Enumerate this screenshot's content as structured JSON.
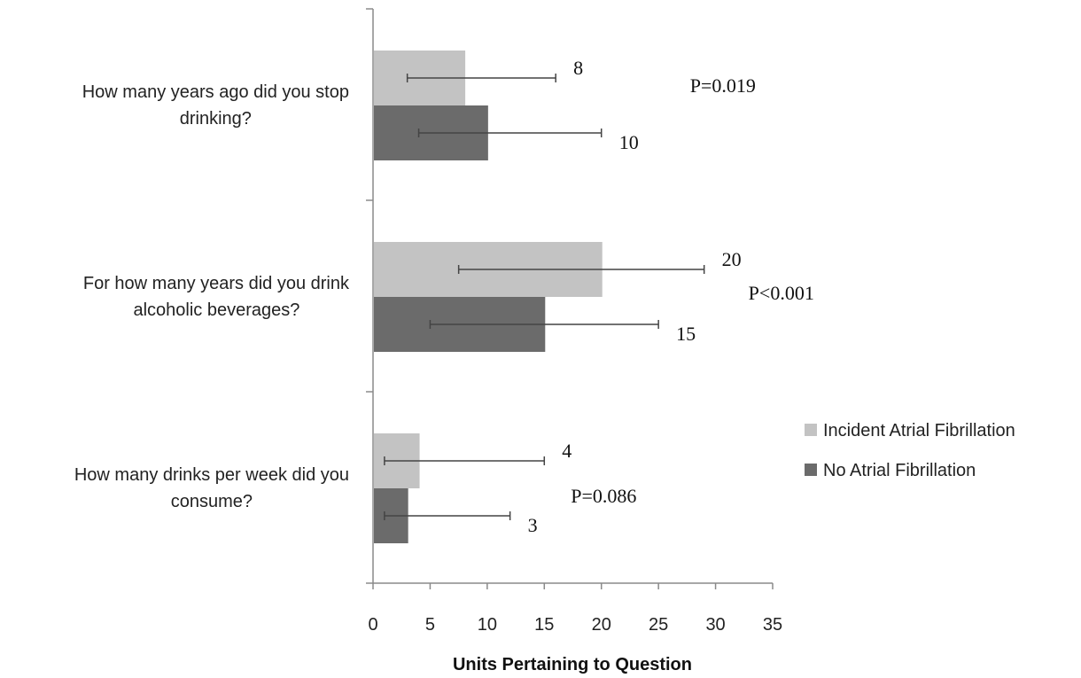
{
  "chart_data": {
    "type": "bar",
    "orientation": "horizontal",
    "title": "",
    "xlabel": "Units Pertaining to Question",
    "ylabel": "",
    "xlim": [
      0,
      35
    ],
    "x_ticks": [
      "0",
      "5",
      "10",
      "15",
      "20",
      "25",
      "30",
      "35"
    ],
    "grid": false,
    "legend_position": "right",
    "categories": [
      "How many years ago did you stop drinking?",
      "For how many years did you drink alcoholic beverages?",
      "How many drinks per week did you consume?"
    ],
    "category_label_lines": [
      [
        "How many years ago did you stop",
        "drinking?"
      ],
      [
        "For how many years did you drink",
        "alcoholic beverages?"
      ],
      [
        "How many drinks per week did you",
        "consume?"
      ]
    ],
    "series": [
      {
        "name": "Incident Atrial Fibrillation",
        "color": "#c3c3c3",
        "values": [
          8,
          20,
          4
        ],
        "value_labels": [
          "8",
          "20",
          "4"
        ],
        "error_low": [
          3,
          7.5,
          1
        ],
        "error_high": [
          16,
          29,
          15
        ]
      },
      {
        "name": "No Atrial Fibrillation",
        "color": "#6b6b6b",
        "values": [
          10,
          15,
          3
        ],
        "value_labels": [
          "10",
          "15",
          "3"
        ],
        "error_low": [
          4,
          5,
          1
        ],
        "error_high": [
          20,
          25,
          12
        ]
      }
    ],
    "annotations": [
      "P=0.019",
      "P<0.001",
      "P=0.086"
    ]
  }
}
